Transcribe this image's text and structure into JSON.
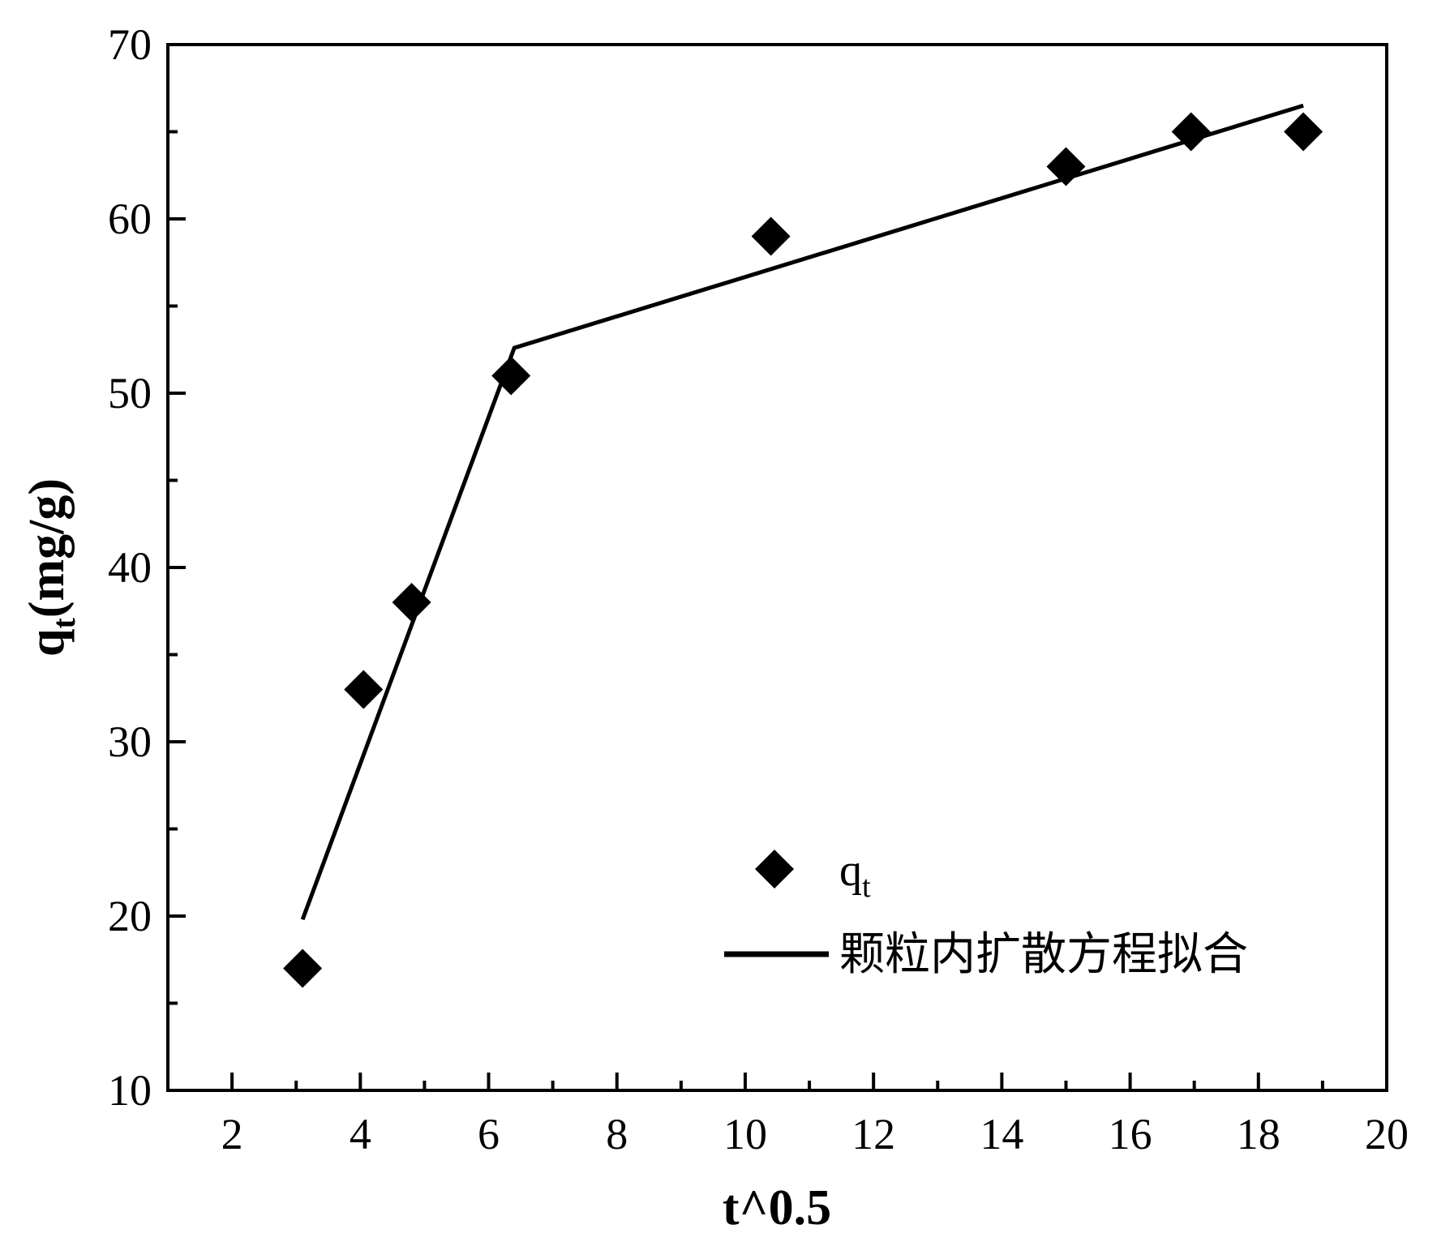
{
  "chart_data": {
    "type": "scatter",
    "xlabel": "t^0.5",
    "ylabel": {
      "main": "q",
      "sub": "t",
      "unit": "(mg/g)"
    },
    "xlim": [
      1,
      20
    ],
    "ylim": [
      10,
      70
    ],
    "xticks": [
      2,
      4,
      6,
      8,
      10,
      12,
      14,
      16,
      18,
      20
    ],
    "yticks": [
      10,
      20,
      30,
      40,
      50,
      60,
      70
    ],
    "grid": false,
    "legend_position": "bottom-right",
    "series": [
      {
        "name": {
          "main": "q",
          "sub": "t"
        },
        "kind": "scatter",
        "marker": "diamond",
        "color": "#000000",
        "x": [
          3.1,
          4.05,
          4.8,
          6.35,
          10.4,
          15.0,
          16.95,
          18.7
        ],
        "y": [
          17,
          33,
          38,
          51,
          59,
          63,
          65,
          65
        ]
      },
      {
        "name": "颗粒内扩散方程拟合",
        "kind": "line",
        "color": "#000000",
        "x": [
          3.1,
          6.4,
          18.7
        ],
        "y": [
          19.8,
          52.6,
          66.5
        ]
      }
    ]
  }
}
